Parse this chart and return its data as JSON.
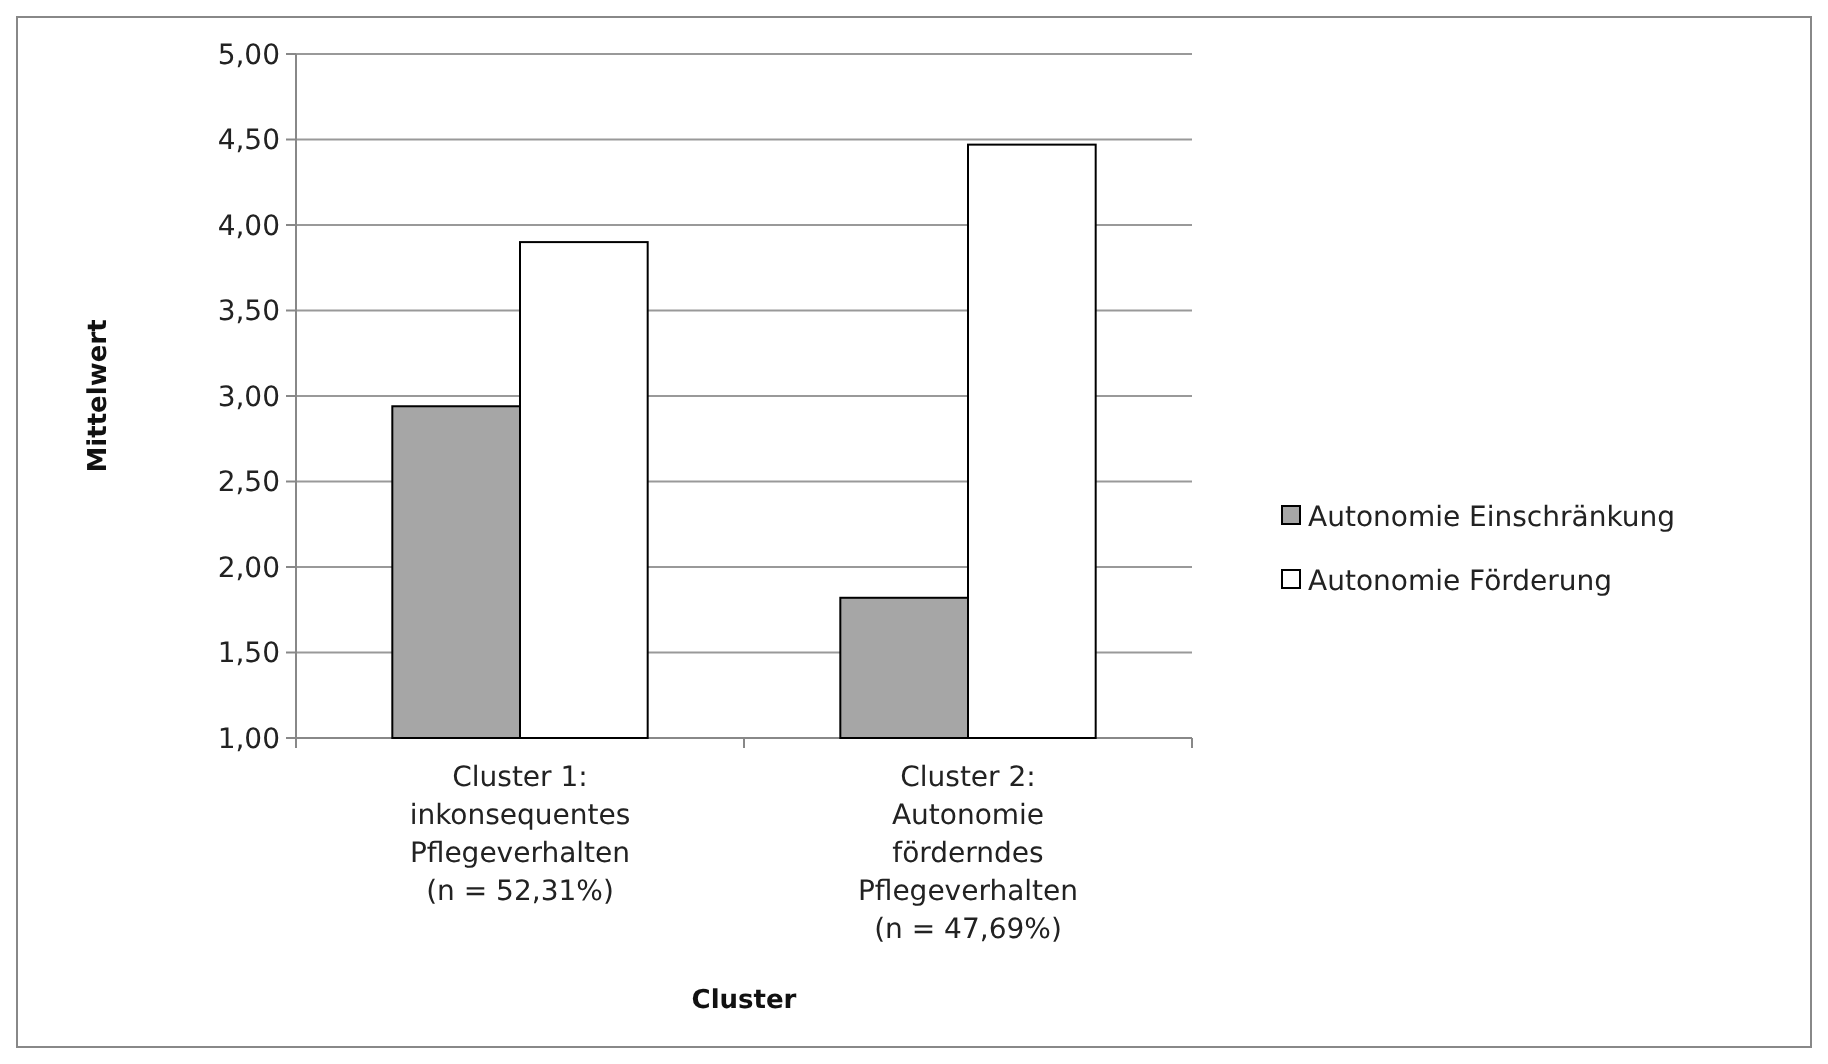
{
  "chart_data": {
    "type": "bar",
    "xlabel": "Cluster",
    "ylabel": "Mittelwert",
    "categories": [
      "Cluster 1:\ninkonsequentes\nPflegeverhalten\n(n = 52,31%)",
      "Cluster 2:\nAutonomie\nförderndes\nPflegeverhalten\n(n =  47,69%)"
    ],
    "series": [
      {
        "name": "Autonomie Einschränkung",
        "color": "#a6a6a6",
        "values": [
          2.94,
          1.82
        ]
      },
      {
        "name": "Autonomie Förderung",
        "color": "#ffffff",
        "values": [
          3.9,
          4.47
        ]
      }
    ],
    "ylim": [
      1,
      5
    ],
    "yticks": [
      {
        "value": 1,
        "label": "1,00"
      },
      {
        "value": 1.5,
        "label": "1,50"
      },
      {
        "value": 2,
        "label": "2,00"
      },
      {
        "value": 2.5,
        "label": "2,50"
      },
      {
        "value": 3,
        "label": "3,00"
      },
      {
        "value": 3.5,
        "label": "3,50"
      },
      {
        "value": 4,
        "label": "4,00"
      },
      {
        "value": 4.5,
        "label": "4,50"
      },
      {
        "value": 5,
        "label": "5,00"
      }
    ],
    "grid": "y",
    "legend": "right"
  }
}
